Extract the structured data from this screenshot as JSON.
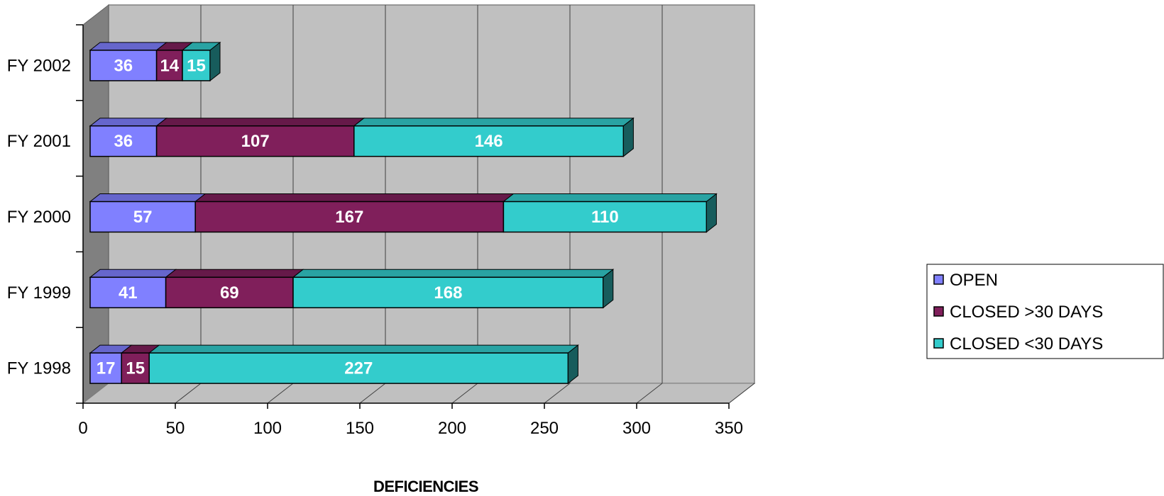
{
  "chart_data": {
    "type": "bar",
    "orientation": "horizontal",
    "stacked": true,
    "three_d": true,
    "categories": [
      "FY 1998",
      "FY 1999",
      "FY 2000",
      "FY 2001",
      "FY 2002"
    ],
    "series": [
      {
        "name": "OPEN",
        "values": [
          17,
          41,
          57,
          36,
          36
        ],
        "color": "#8080ff"
      },
      {
        "name": "CLOSED >30 DAYS",
        "values": [
          15,
          69,
          167,
          107,
          14
        ],
        "color": "#801f5b"
      },
      {
        "name": "CLOSED <30 DAYS",
        "values": [
          227,
          168,
          110,
          146,
          15
        ],
        "color": "#33cccc"
      }
    ],
    "xlabel": "DEFICIENCIES",
    "ylabel": "",
    "title": "",
    "xlim": [
      0,
      350
    ],
    "xticks": [
      0,
      50,
      100,
      150,
      200,
      250,
      300,
      350
    ],
    "grid": true,
    "legend_position": "right",
    "wall_color": "#c0c0c0",
    "side_wall_color": "#808080"
  }
}
